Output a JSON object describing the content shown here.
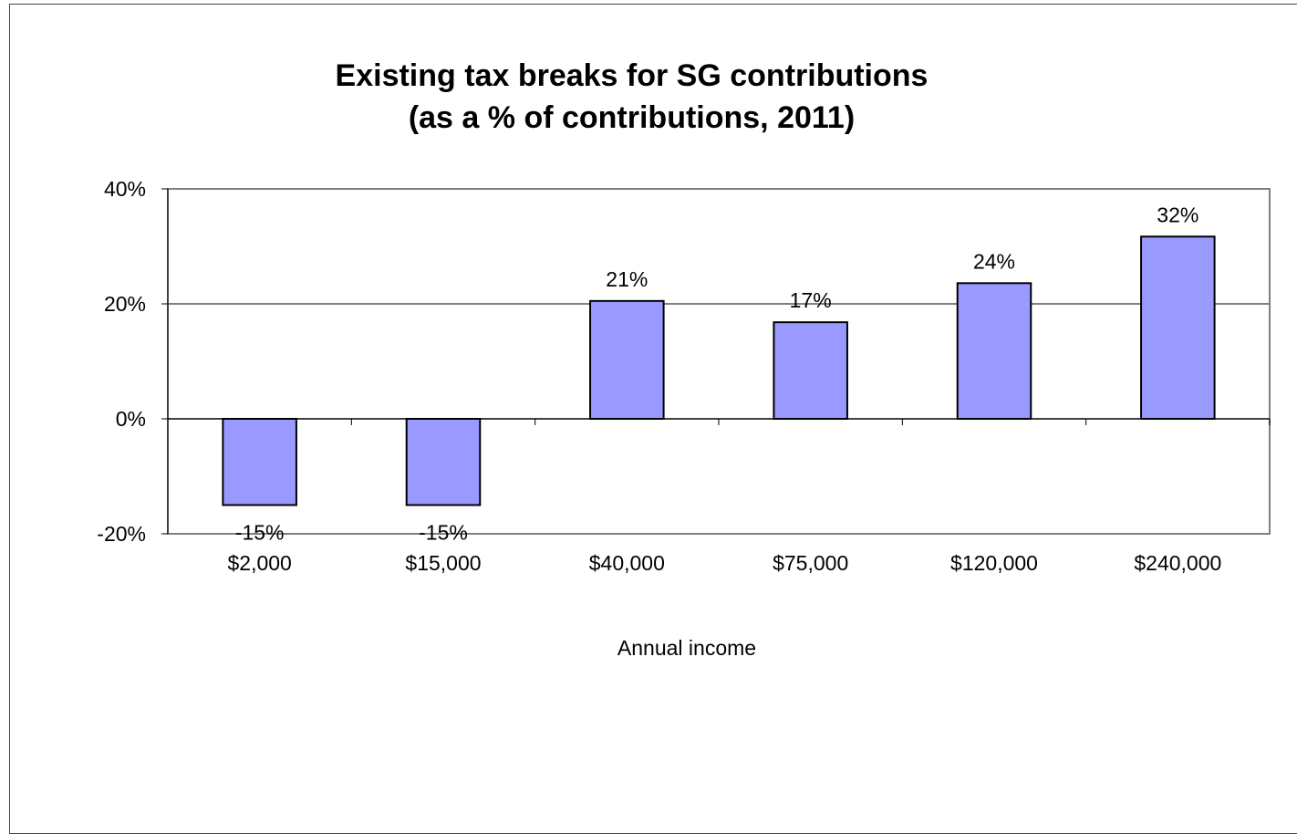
{
  "chart_data": {
    "type": "bar",
    "title": "Existing tax breaks for SG contributions",
    "subtitle": "(as a % of contributions, 2011)",
    "xlabel": "Annual income",
    "ylabel": "",
    "categories": [
      "$2,000",
      "$15,000",
      "$40,000",
      "$75,000",
      "$120,000",
      "$240,000"
    ],
    "values": [
      -15,
      -15,
      20.5,
      16.8,
      23.6,
      31.7
    ],
    "data_labels": [
      "-15%",
      "-15%",
      "21%",
      "17%",
      "24%",
      "32%"
    ],
    "ylim": [
      -20,
      40
    ],
    "yticks": [
      -20,
      0,
      20,
      40
    ],
    "ytick_labels": [
      "-20%",
      "0%",
      "20%",
      "40%"
    ],
    "grid": true,
    "legend": "none",
    "colors": {
      "bar": "#9999ff",
      "bar_border": "#000000",
      "plot_border": "#808080",
      "gridline": "#000000"
    }
  }
}
